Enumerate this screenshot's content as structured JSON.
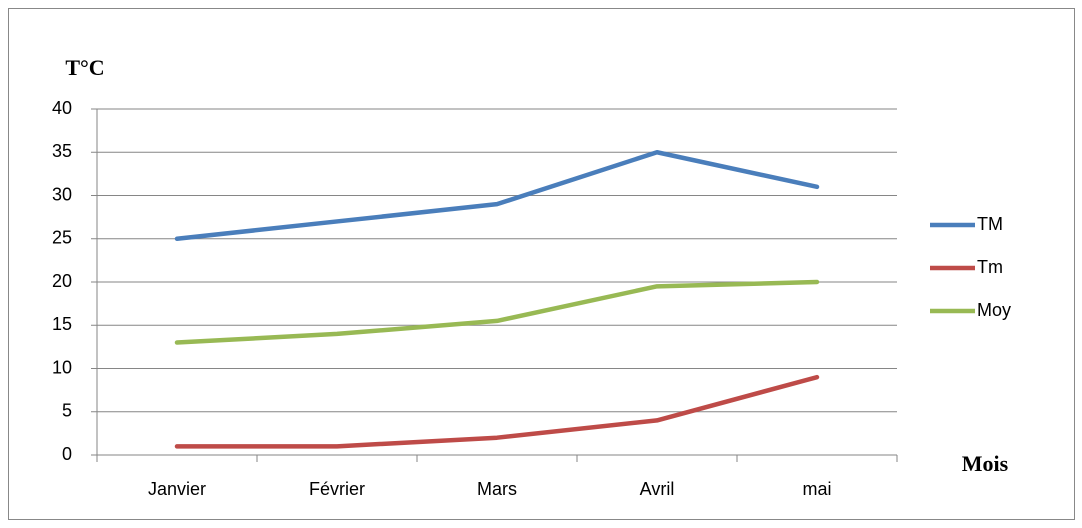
{
  "chart_data": {
    "type": "line",
    "y_label": "T°C",
    "x_label": "Mois",
    "categories": [
      "Janvier",
      "Février",
      "Mars",
      "Avril",
      "mai"
    ],
    "series": [
      {
        "name": "TM",
        "color": "#4a7ebb",
        "values": [
          25,
          27,
          29,
          35,
          31
        ]
      },
      {
        "name": "Tm",
        "color": "#be4b48",
        "values": [
          1,
          1,
          2,
          4,
          9
        ]
      },
      {
        "name": "Moy",
        "color": "#98b954",
        "values": [
          13,
          14,
          15.5,
          19.5,
          20
        ]
      }
    ],
    "ylim": [
      0,
      40
    ],
    "yticks": [
      0,
      5,
      10,
      15,
      20,
      25,
      30,
      35,
      40
    ],
    "grid": true,
    "legend": "right"
  }
}
